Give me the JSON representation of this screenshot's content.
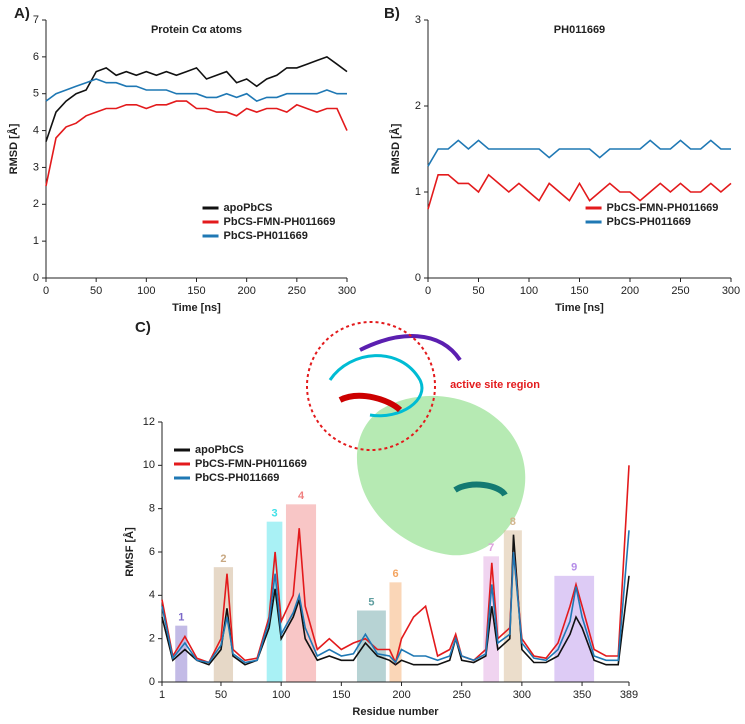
{
  "chart_data": [
    {
      "type": "line",
      "label": "A)",
      "title": "Protein Cα atoms",
      "xlabel": "Time [ns]",
      "ylabel": "RMSD [Å]",
      "xlim": [
        0,
        300
      ],
      "xticks": [
        0,
        50,
        100,
        150,
        200,
        250,
        300
      ],
      "ylim": [
        0,
        7
      ],
      "yticks": [
        0,
        1,
        2,
        3,
        4,
        5,
        6,
        7
      ],
      "legend": "lower right",
      "x": [
        0,
        10,
        20,
        30,
        40,
        50,
        60,
        70,
        80,
        90,
        100,
        110,
        120,
        130,
        140,
        150,
        160,
        170,
        180,
        190,
        200,
        210,
        220,
        230,
        240,
        250,
        260,
        270,
        280,
        290,
        300
      ],
      "series": [
        {
          "name": "apoPbCS",
          "color": "#111111",
          "values": [
            3.7,
            4.5,
            4.8,
            5.0,
            5.1,
            5.6,
            5.7,
            5.5,
            5.6,
            5.5,
            5.6,
            5.5,
            5.6,
            5.5,
            5.6,
            5.7,
            5.4,
            5.5,
            5.6,
            5.3,
            5.4,
            5.2,
            5.4,
            5.5,
            5.7,
            5.7,
            5.8,
            5.9,
            6.0,
            5.8,
            5.6
          ]
        },
        {
          "name": "PbCS-FMN-PH011669",
          "color": "#e31a1c",
          "values": [
            2.5,
            3.8,
            4.1,
            4.2,
            4.4,
            4.5,
            4.6,
            4.6,
            4.7,
            4.7,
            4.6,
            4.7,
            4.7,
            4.8,
            4.8,
            4.6,
            4.6,
            4.5,
            4.5,
            4.4,
            4.6,
            4.5,
            4.6,
            4.6,
            4.5,
            4.7,
            4.6,
            4.5,
            4.6,
            4.6,
            4.0
          ]
        },
        {
          "name": "PbCS-PH011669",
          "color": "#1f78b4",
          "values": [
            4.8,
            5.0,
            5.1,
            5.2,
            5.3,
            5.4,
            5.3,
            5.3,
            5.2,
            5.2,
            5.1,
            5.1,
            5.1,
            5.0,
            5.0,
            5.0,
            4.9,
            4.9,
            5.0,
            4.9,
            5.0,
            4.8,
            4.9,
            4.9,
            5.0,
            5.0,
            5.0,
            5.0,
            5.1,
            5.0,
            5.0
          ]
        }
      ]
    },
    {
      "type": "line",
      "label": "B)",
      "title": "PH011669",
      "xlabel": "Time [ns]",
      "ylabel": "RMSD [Å]",
      "xlim": [
        0,
        300
      ],
      "xticks": [
        0,
        50,
        100,
        150,
        200,
        250,
        300
      ],
      "ylim": [
        0,
        3
      ],
      "yticks": [
        0,
        1,
        2,
        3
      ],
      "legend": "lower right",
      "x": [
        0,
        10,
        20,
        30,
        40,
        50,
        60,
        70,
        80,
        90,
        100,
        110,
        120,
        130,
        140,
        150,
        160,
        170,
        180,
        190,
        200,
        210,
        220,
        230,
        240,
        250,
        260,
        270,
        280,
        290,
        300
      ],
      "series": [
        {
          "name": "PbCS-FMN-PH011669",
          "color": "#e31a1c",
          "values": [
            0.8,
            1.2,
            1.2,
            1.1,
            1.1,
            1.0,
            1.2,
            1.1,
            1.0,
            1.1,
            1.0,
            0.9,
            1.1,
            1.0,
            0.9,
            1.1,
            0.9,
            1.0,
            1.1,
            1.0,
            1.0,
            0.9,
            1.0,
            1.1,
            1.0,
            1.1,
            1.0,
            1.0,
            1.1,
            1.0,
            1.1
          ]
        },
        {
          "name": "PbCS-PH011669",
          "color": "#1f78b4",
          "values": [
            1.3,
            1.5,
            1.5,
            1.6,
            1.5,
            1.6,
            1.5,
            1.5,
            1.5,
            1.5,
            1.5,
            1.5,
            1.4,
            1.5,
            1.5,
            1.5,
            1.5,
            1.4,
            1.5,
            1.5,
            1.5,
            1.5,
            1.6,
            1.5,
            1.5,
            1.6,
            1.5,
            1.5,
            1.6,
            1.5,
            1.5
          ]
        }
      ]
    },
    {
      "type": "line",
      "label": "C)",
      "xlabel": "Residue number",
      "ylabel": "RMSF [Å]",
      "annotation": "active site region",
      "xlim": [
        1,
        389
      ],
      "xticks": [
        1,
        50,
        100,
        150,
        200,
        250,
        300,
        350,
        389
      ],
      "ylim": [
        0,
        12
      ],
      "yticks": [
        0,
        2,
        4,
        6,
        8,
        10,
        12
      ],
      "legend": "upper left",
      "regions": [
        {
          "label": "1",
          "start": 12,
          "end": 22,
          "top": 2.6,
          "color": "#7b68c8"
        },
        {
          "label": "2",
          "start": 44,
          "end": 60,
          "top": 5.3,
          "color": "#c8a882"
        },
        {
          "label": "3",
          "start": 88,
          "end": 101,
          "top": 7.4,
          "color": "#40e0e8"
        },
        {
          "label": "4",
          "start": 104,
          "end": 129,
          "top": 8.2,
          "color": "#f08080"
        },
        {
          "label": "5",
          "start": 163,
          "end": 187,
          "top": 3.3,
          "color": "#5f9ea0"
        },
        {
          "label": "6",
          "start": 190,
          "end": 200,
          "top": 4.6,
          "color": "#f4a460"
        },
        {
          "label": "7",
          "start": 268,
          "end": 281,
          "top": 5.8,
          "color": "#dda0dd"
        },
        {
          "label": "8",
          "start": 285,
          "end": 300,
          "top": 7.0,
          "color": "#d2b48c"
        },
        {
          "label": "9",
          "start": 327,
          "end": 360,
          "top": 4.9,
          "color": "#b48ce8"
        }
      ],
      "x": [
        1,
        10,
        20,
        30,
        40,
        50,
        55,
        60,
        70,
        80,
        90,
        95,
        100,
        110,
        115,
        120,
        130,
        140,
        150,
        160,
        170,
        180,
        190,
        195,
        200,
        210,
        220,
        230,
        240,
        245,
        250,
        260,
        270,
        275,
        280,
        290,
        293,
        300,
        310,
        320,
        330,
        340,
        345,
        350,
        360,
        370,
        380,
        389
      ],
      "series": [
        {
          "name": "apoPbCS",
          "color": "#111111",
          "values": [
            3.0,
            1.0,
            1.5,
            1.0,
            0.8,
            1.5,
            3.4,
            1.2,
            0.8,
            1.0,
            2.5,
            4.3,
            2.0,
            3.0,
            3.8,
            2.0,
            1.0,
            1.2,
            1.0,
            1.0,
            1.8,
            1.2,
            1.0,
            0.8,
            1.0,
            0.8,
            0.8,
            0.8,
            1.0,
            2.0,
            1.0,
            0.9,
            1.2,
            3.5,
            1.5,
            2.0,
            6.8,
            1.5,
            0.9,
            0.9,
            1.2,
            2.2,
            3.0,
            2.5,
            1.0,
            0.8,
            0.8,
            4.9
          ]
        },
        {
          "name": "PbCS-FMN-PH011669",
          "color": "#e31a1c",
          "values": [
            3.8,
            1.2,
            2.1,
            1.1,
            0.9,
            2.0,
            5.0,
            1.5,
            1.0,
            1.1,
            3.0,
            6.0,
            2.8,
            4.0,
            7.1,
            3.5,
            1.5,
            2.0,
            1.5,
            1.8,
            2.0,
            1.5,
            1.5,
            0.9,
            2.0,
            3.0,
            3.5,
            1.2,
            1.5,
            2.2,
            1.2,
            1.0,
            1.5,
            5.5,
            2.0,
            2.5,
            6.0,
            2.0,
            1.2,
            1.1,
            1.8,
            3.5,
            4.5,
            3.5,
            1.5,
            1.2,
            1.2,
            10.0
          ]
        },
        {
          "name": "PbCS-PH011669",
          "color": "#1f78b4",
          "values": [
            3.5,
            1.1,
            1.8,
            1.0,
            0.9,
            1.7,
            3.0,
            1.3,
            0.9,
            1.0,
            2.8,
            5.0,
            2.2,
            3.2,
            4.0,
            2.5,
            1.2,
            1.5,
            1.2,
            1.3,
            2.2,
            1.3,
            1.2,
            0.9,
            1.5,
            1.2,
            1.2,
            1.0,
            1.2,
            2.0,
            1.2,
            1.0,
            1.3,
            4.5,
            1.8,
            2.2,
            6.0,
            1.8,
            1.1,
            1.0,
            1.5,
            2.8,
            4.4,
            3.0,
            1.2,
            1.0,
            1.0,
            7.0
          ]
        }
      ]
    }
  ]
}
